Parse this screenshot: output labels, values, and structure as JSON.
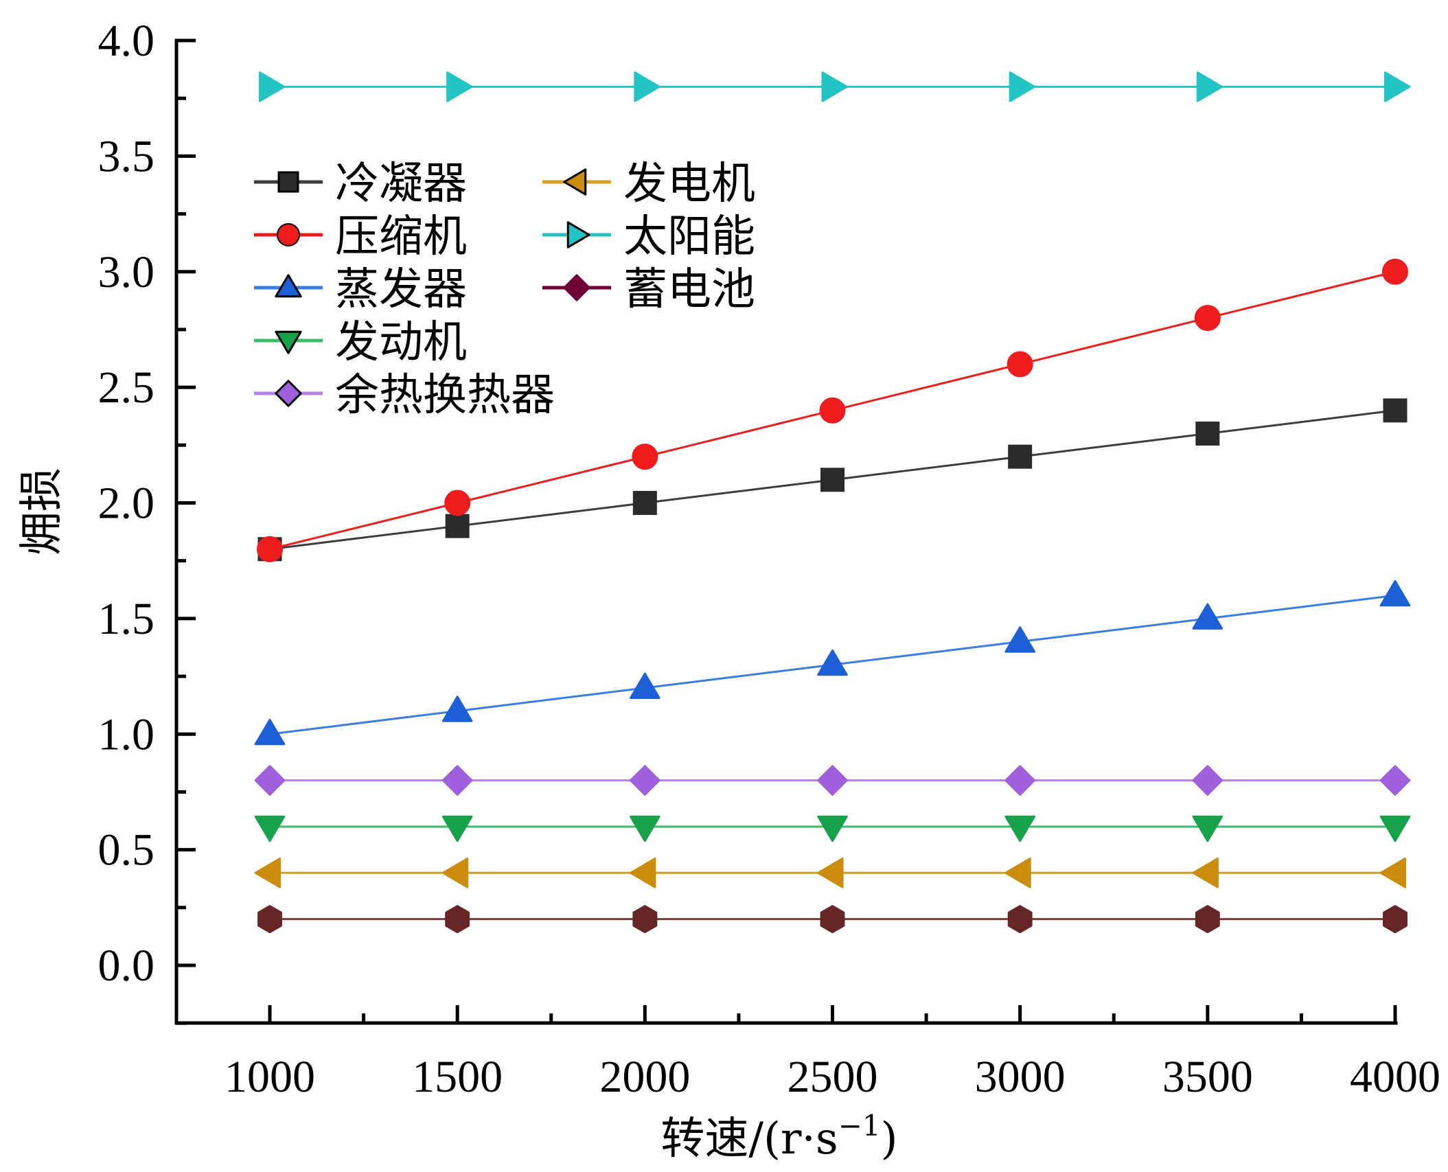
{
  "chart_data": {
    "type": "line",
    "title": "",
    "xlabel": "转速/(r·s",
    "xlabel_sup": "−1",
    "xlabel_close": ")",
    "ylabel": "㶲损",
    "xlim": [
      750,
      4000
    ],
    "ylim": [
      -0.25,
      4.0
    ],
    "x": [
      1000,
      1500,
      2000,
      2500,
      3000,
      3500,
      4000
    ],
    "x_ticks": [
      1000,
      1500,
      2000,
      2500,
      3000,
      3500,
      4000
    ],
    "x_tick_labels": [
      "1000",
      "1500",
      "2000",
      "2500",
      "3000",
      "3500",
      "4000"
    ],
    "y_ticks": [
      0.0,
      0.5,
      1.0,
      1.5,
      2.0,
      2.5,
      3.0,
      3.5,
      4.0
    ],
    "y_tick_labels": [
      "0.0",
      "0.5",
      "1.0",
      "1.5",
      "2.0",
      "2.5",
      "3.0",
      "3.5",
      "4.0"
    ],
    "grid": false,
    "legend_placement": "top-left",
    "series": [
      {
        "name": "冷凝器",
        "color": "#2b2b2b",
        "line_color": "#3d3d3d",
        "marker": "square",
        "values": [
          1.8,
          1.9,
          2.0,
          2.1,
          2.2,
          2.3,
          2.4
        ]
      },
      {
        "name": "压缩机",
        "color": "#ee1c1c",
        "line_color": "#ee1c1c",
        "marker": "circle",
        "values": [
          1.8,
          2.0,
          2.2,
          2.4,
          2.6,
          2.8,
          3.0
        ]
      },
      {
        "name": "蒸发器",
        "color": "#1c5fd6",
        "line_color": "#3b7ee0",
        "marker": "triangle-up",
        "values": [
          1.0,
          1.1,
          1.2,
          1.3,
          1.4,
          1.5,
          1.6
        ]
      },
      {
        "name": "发动机",
        "color": "#16a14a",
        "line_color": "#3dbb6a",
        "marker": "triangle-down",
        "values": [
          0.6,
          0.6,
          0.6,
          0.6,
          0.6,
          0.6,
          0.6
        ]
      },
      {
        "name": "余热换热器",
        "color": "#a05fdc",
        "line_color": "#b582e4",
        "marker": "diamond",
        "values": [
          0.8,
          0.8,
          0.8,
          0.8,
          0.8,
          0.8,
          0.8
        ]
      },
      {
        "name": "发电机",
        "color": "#cc8c0c",
        "line_color": "#d69e22",
        "marker": "triangle-left",
        "values": [
          0.4,
          0.4,
          0.4,
          0.4,
          0.4,
          0.4,
          0.4
        ]
      },
      {
        "name": "太阳能",
        "color": "#22c4c4",
        "line_color": "#22c4c4",
        "marker": "triangle-right",
        "values": [
          3.8,
          3.8,
          3.8,
          3.8,
          3.8,
          3.8,
          3.8
        ]
      },
      {
        "name": "蓄电池",
        "color": "#662626",
        "line_color": "#7a3a3a",
        "marker": "hexagon",
        "legend_marker": "diamond",
        "legend_color": "#6e0033",
        "values": [
          0.2,
          0.2,
          0.2,
          0.2,
          0.2,
          0.2,
          0.2
        ]
      }
    ],
    "legend_order": [
      [
        "冷凝器",
        "压缩机",
        "蒸发器",
        "发动机",
        "余热换热器"
      ],
      [
        "发电机",
        "太阳能",
        "蓄电池"
      ]
    ]
  }
}
